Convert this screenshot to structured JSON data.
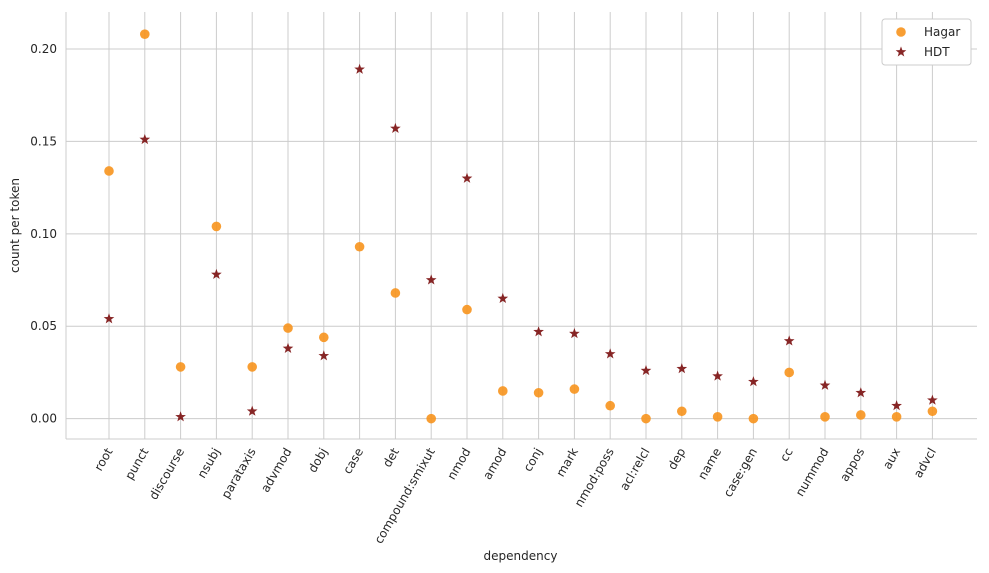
{
  "chart_data": {
    "type": "scatter",
    "title": "",
    "xlabel": "dependency",
    "ylabel": "count per token",
    "ylim": [
      -0.011,
      0.22
    ],
    "yticks": [
      0.0,
      0.05,
      0.1,
      0.15,
      0.2
    ],
    "ytick_labels": [
      "0.00",
      "0.05",
      "0.10",
      "0.15",
      "0.20"
    ],
    "grid": true,
    "legend_position": "top-right",
    "colors": {
      "Hagar": "#f7941d",
      "HDT": "#7b0f0f"
    },
    "categories": [
      "root",
      "punct",
      "discourse",
      "nsubj",
      "parataxis",
      "advmod",
      "dobj",
      "case",
      "det",
      "compound:smixut",
      "nmod",
      "amod",
      "conj",
      "mark",
      "nmod:poss",
      "acl:relcl",
      "dep",
      "name",
      "case:gen",
      "cc",
      "nummod",
      "appos",
      "aux",
      "advcl"
    ],
    "series": [
      {
        "name": "Hagar",
        "marker": "circle",
        "values": [
          0.134,
          0.208,
          0.028,
          0.104,
          0.028,
          0.049,
          0.044,
          0.093,
          0.068,
          0.0,
          0.059,
          0.015,
          0.014,
          0.016,
          0.007,
          0.0,
          0.004,
          0.001,
          0.0,
          0.025,
          0.001,
          0.002,
          0.001,
          0.004
        ]
      },
      {
        "name": "HDT",
        "marker": "star",
        "values": [
          0.054,
          0.151,
          0.001,
          0.078,
          0.004,
          0.038,
          0.034,
          0.189,
          0.157,
          0.075,
          0.13,
          0.065,
          0.047,
          0.046,
          0.035,
          0.026,
          0.027,
          0.023,
          0.02,
          0.042,
          0.018,
          0.014,
          0.007,
          0.01
        ]
      }
    ]
  }
}
